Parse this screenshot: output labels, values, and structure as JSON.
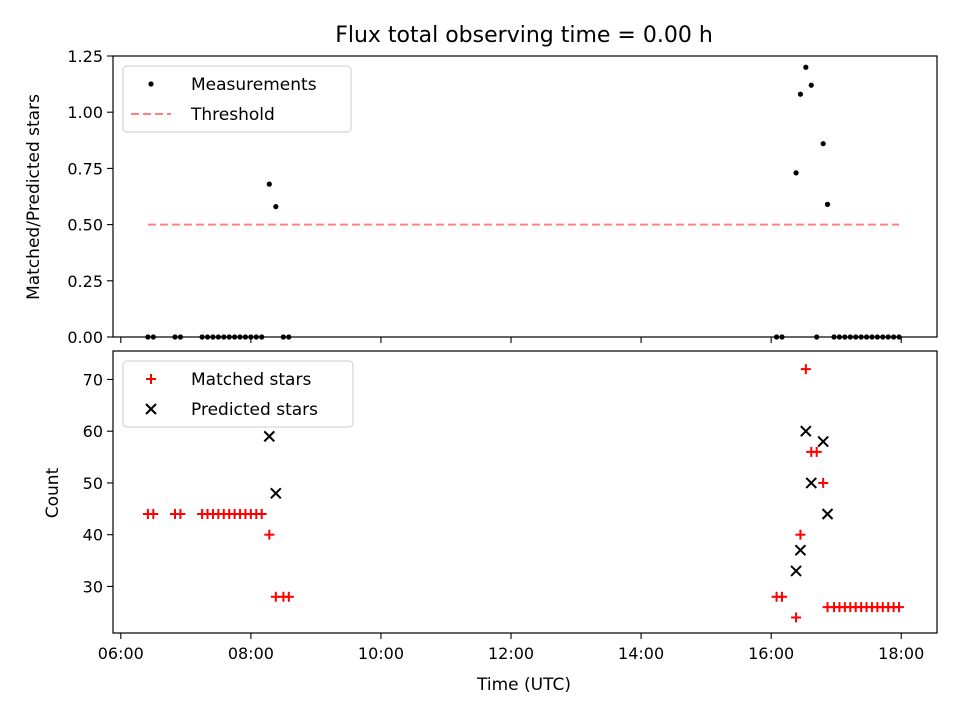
{
  "figure": {
    "title": "Flux total observing time = 0.00 h",
    "xlabel": "Time (UTC)"
  },
  "chart_data": [
    {
      "type": "scatter",
      "panel": "top",
      "ylabel": "Matched/Predicted stars",
      "xlim_hours": [
        5.88,
        18.55
      ],
      "ylim": [
        0,
        1.25
      ],
      "yticks": [
        0.0,
        0.25,
        0.5,
        0.75,
        1.0,
        1.25
      ],
      "ytick_labels": [
        "0.00",
        "0.25",
        "0.50",
        "0.75",
        "1.00",
        "1.25"
      ],
      "legend_position": "upper-left",
      "grid": false,
      "series": [
        {
          "name": "Measurements",
          "kind": "dots",
          "color": "#000000",
          "points": [
            [
              "06:25",
              0
            ],
            [
              "06:30",
              0
            ],
            [
              "06:50",
              0
            ],
            [
              "06:55",
              0
            ],
            [
              "07:15",
              0
            ],
            [
              "07:20",
              0
            ],
            [
              "07:25",
              0
            ],
            [
              "07:30",
              0
            ],
            [
              "07:35",
              0
            ],
            [
              "07:40",
              0
            ],
            [
              "07:45",
              0
            ],
            [
              "07:50",
              0
            ],
            [
              "07:55",
              0
            ],
            [
              "08:00",
              0
            ],
            [
              "08:05",
              0
            ],
            [
              "08:10",
              0
            ],
            [
              "08:17",
              0.68
            ],
            [
              "08:23",
              0.58
            ],
            [
              "08:30",
              0
            ],
            [
              "08:35",
              0
            ],
            [
              "16:05",
              0
            ],
            [
              "16:10",
              0
            ],
            [
              "16:23",
              0.73
            ],
            [
              "16:27",
              1.08
            ],
            [
              "16:32",
              1.2
            ],
            [
              "16:37",
              1.12
            ],
            [
              "16:42",
              0
            ],
            [
              "16:48",
              0.86
            ],
            [
              "16:52",
              0.59
            ],
            [
              "16:58",
              0
            ],
            [
              "17:03",
              0
            ],
            [
              "17:08",
              0
            ],
            [
              "17:13",
              0
            ],
            [
              "17:18",
              0
            ],
            [
              "17:23",
              0
            ],
            [
              "17:28",
              0
            ],
            [
              "17:33",
              0
            ],
            [
              "17:38",
              0
            ],
            [
              "17:43",
              0
            ],
            [
              "17:48",
              0
            ],
            [
              "17:53",
              0
            ],
            [
              "17:58",
              0
            ]
          ]
        },
        {
          "name": "Threshold",
          "kind": "dashed-line",
          "color": "#ff8080",
          "points": [
            [
              "06:25",
              0.5
            ],
            [
              "17:58",
              0.5
            ]
          ]
        }
      ]
    },
    {
      "type": "scatter",
      "panel": "bottom",
      "ylabel": "Count",
      "xlim_hours": [
        5.88,
        18.55
      ],
      "ylim": [
        21,
        75.5
      ],
      "yticks": [
        30,
        40,
        50,
        60,
        70
      ],
      "ytick_labels": [
        "30",
        "40",
        "50",
        "60",
        "70"
      ],
      "xticks": [
        "06:00",
        "08:00",
        "10:00",
        "12:00",
        "14:00",
        "16:00",
        "18:00"
      ],
      "legend_position": "upper-left",
      "grid": false,
      "series": [
        {
          "name": "Matched stars",
          "marker": "plus",
          "color": "#ff0000",
          "points": [
            [
              "06:25",
              44
            ],
            [
              "06:30",
              44
            ],
            [
              "06:50",
              44
            ],
            [
              "06:55",
              44
            ],
            [
              "07:15",
              44
            ],
            [
              "07:20",
              44
            ],
            [
              "07:25",
              44
            ],
            [
              "07:30",
              44
            ],
            [
              "07:35",
              44
            ],
            [
              "07:40",
              44
            ],
            [
              "07:45",
              44
            ],
            [
              "07:50",
              44
            ],
            [
              "07:55",
              44
            ],
            [
              "08:00",
              44
            ],
            [
              "08:05",
              44
            ],
            [
              "08:10",
              44
            ],
            [
              "08:17",
              40
            ],
            [
              "08:23",
              28
            ],
            [
              "08:30",
              28
            ],
            [
              "08:35",
              28
            ],
            [
              "16:05",
              28
            ],
            [
              "16:10",
              28
            ],
            [
              "16:23",
              24
            ],
            [
              "16:27",
              40
            ],
            [
              "16:32",
              72
            ],
            [
              "16:37",
              56
            ],
            [
              "16:42",
              56
            ],
            [
              "16:48",
              50
            ],
            [
              "16:52",
              26
            ],
            [
              "16:58",
              26
            ],
            [
              "17:03",
              26
            ],
            [
              "17:08",
              26
            ],
            [
              "17:13",
              26
            ],
            [
              "17:18",
              26
            ],
            [
              "17:23",
              26
            ],
            [
              "17:28",
              26
            ],
            [
              "17:33",
              26
            ],
            [
              "17:38",
              26
            ],
            [
              "17:43",
              26
            ],
            [
              "17:48",
              26
            ],
            [
              "17:53",
              26
            ],
            [
              "17:58",
              26
            ]
          ]
        },
        {
          "name": "Predicted stars",
          "marker": "x",
          "color": "#000000",
          "points": [
            [
              "08:17",
              59
            ],
            [
              "08:23",
              48
            ],
            [
              "16:23",
              33
            ],
            [
              "16:27",
              37
            ],
            [
              "16:32",
              60
            ],
            [
              "16:37",
              50
            ],
            [
              "16:48",
              58
            ],
            [
              "16:52",
              44
            ]
          ]
        }
      ]
    }
  ]
}
